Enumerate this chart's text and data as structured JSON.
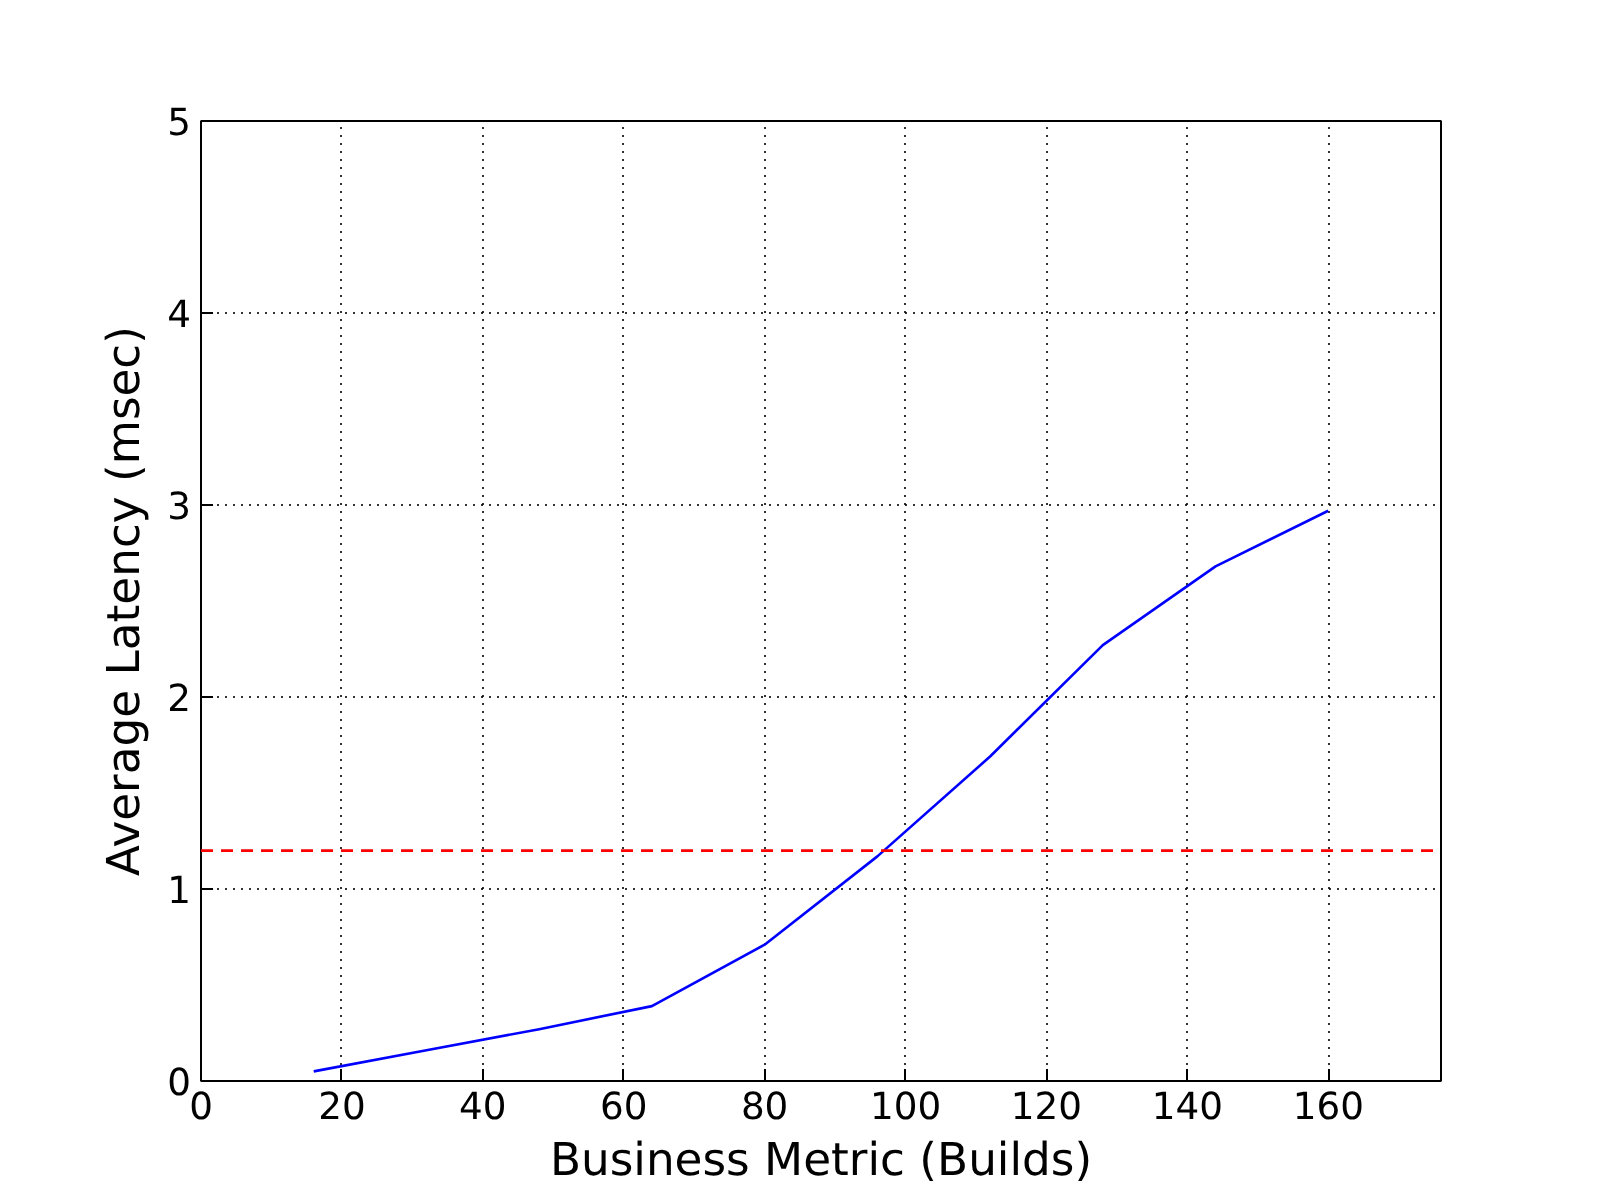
{
  "chart_data": {
    "type": "line",
    "xlabel": "Business Metric (Builds)",
    "ylabel": "Average Latency (msec)",
    "x": [
      16,
      32,
      48,
      64,
      80,
      96,
      112,
      128,
      144,
      160
    ],
    "series": [
      {
        "color": "#0000ff",
        "values": [
          0.05,
          0.16,
          0.27,
          0.39,
          0.71,
          1.17,
          1.69,
          2.27,
          2.68,
          2.97
        ]
      }
    ],
    "xlim": [
      0,
      176
    ],
    "ylim": [
      0,
      5
    ],
    "xticks": [
      0,
      20,
      40,
      60,
      80,
      100,
      120,
      140,
      160
    ],
    "yticks": [
      0,
      1,
      2,
      3,
      4,
      5
    ],
    "ref_lines": [
      {
        "axis": "y",
        "value": 1.2,
        "color": "#ff0000",
        "line_style": "dashed"
      }
    ],
    "grid": true,
    "line_style": "solid",
    "marker": "none"
  }
}
